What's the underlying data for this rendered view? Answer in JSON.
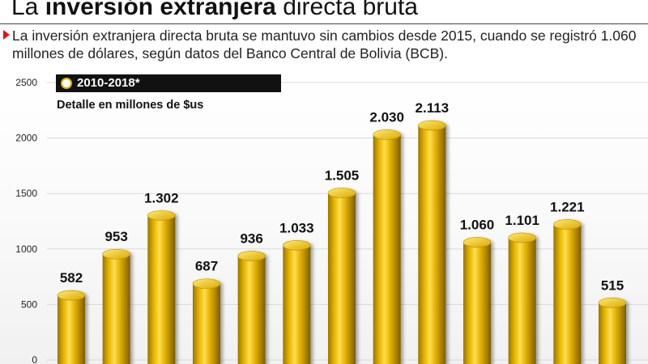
{
  "header": {
    "title_prefix": "La",
    "title_emphasis": "inversión extranjera",
    "title_suffix": "directa bruta",
    "description": "La inversión extranjera directa bruta se mantuvo sin cambios desde 2015, cuando se registró 1.060 millones de dólares, según datos del Banco Central de Bolivia (BCB)."
  },
  "chart_data": {
    "type": "bar",
    "title": "2010-2018*",
    "subtitle": "Detalle en millones de $us",
    "categories": [
      "",
      "",
      "",
      "",
      "",
      "",
      "",
      "",
      "",
      "",
      "",
      "",
      ""
    ],
    "values": [
      582,
      953,
      1302,
      687,
      936,
      1033,
      1505,
      2030,
      2113,
      1060,
      1101,
      1221,
      515
    ],
    "value_labels": [
      "582",
      "953",
      "1.302",
      "687",
      "936",
      "1.033",
      "1.505",
      "2.030",
      "2.113",
      "1.060",
      "1.101",
      "1.221",
      "515"
    ],
    "yticks": [
      "0",
      "500",
      "1000",
      "1500",
      "2000",
      "2500"
    ],
    "ytick_values": [
      0,
      500,
      1000,
      1500,
      2000,
      2500
    ],
    "ylim": [
      0,
      2500
    ],
    "xlabel": "",
    "ylabel": "",
    "grid": true,
    "colors": {
      "bar": "#e1b000",
      "bar_dark": "#8a6800",
      "bar_light": "#ffe36a",
      "badge": "#111111",
      "marker": "#e3101a"
    }
  }
}
